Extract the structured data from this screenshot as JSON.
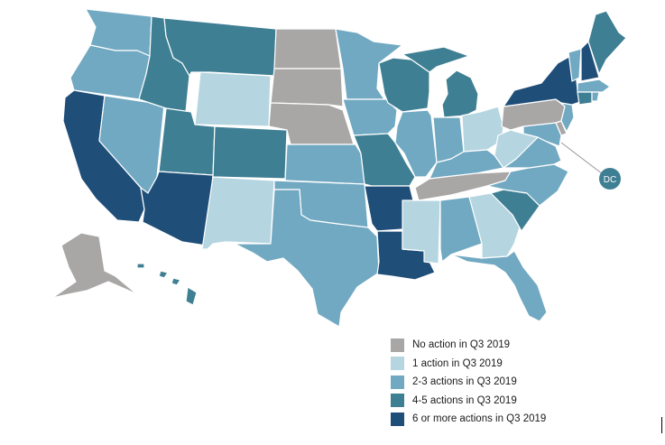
{
  "colors": {
    "none": "#a9a6a6",
    "one": "#b5d5e0",
    "two_three": "#71a9c2",
    "four_five": "#3f7f94",
    "six_plus": "#1f4e79",
    "border": "#ffffff",
    "dc_marker": "#3f7f94"
  },
  "dc_label": "DC",
  "legend": {
    "items": [
      {
        "key": "none",
        "label": "No action in Q3 2019"
      },
      {
        "key": "one",
        "label": "1 action in Q3 2019"
      },
      {
        "key": "two_three",
        "label": "2-3 actions in Q3 2019"
      },
      {
        "key": "four_five",
        "label": "4-5 actions in Q3 2019"
      },
      {
        "key": "six_plus",
        "label": "6 or more actions in Q3 2019"
      }
    ]
  },
  "states": {
    "WA": "two_three",
    "OR": "two_three",
    "CA": "six_plus",
    "NV": "two_three",
    "ID": "four_five",
    "MT": "four_five",
    "WY": "one",
    "UT": "four_five",
    "AZ": "six_plus",
    "CO": "four_five",
    "NM": "one",
    "ND": "none",
    "SD": "none",
    "NE": "none",
    "KS": "two_three",
    "OK": "two_three",
    "TX": "two_three",
    "MN": "two_three",
    "IA": "two_three",
    "MO": "four_five",
    "AR": "six_plus",
    "LA": "six_plus",
    "WI": "four_five",
    "IL": "two_three",
    "MI": "four_five",
    "IN": "two_three",
    "OH": "one",
    "KY": "two_three",
    "TN": "none",
    "MS": "one",
    "AL": "two_three",
    "GA": "one",
    "FL": "two_three",
    "SC": "four_five",
    "NC": "two_three",
    "VA": "two_three",
    "WV": "one",
    "PA": "none",
    "NY": "six_plus",
    "VT": "two_three",
    "NH": "six_plus",
    "ME": "four_five",
    "MA": "two_three",
    "CT": "four_five",
    "RI": "two_three",
    "NJ": "two_three",
    "DE": "none",
    "MD": "two_three",
    "AK": "none",
    "HI": "four_five",
    "DC": "four_five"
  }
}
